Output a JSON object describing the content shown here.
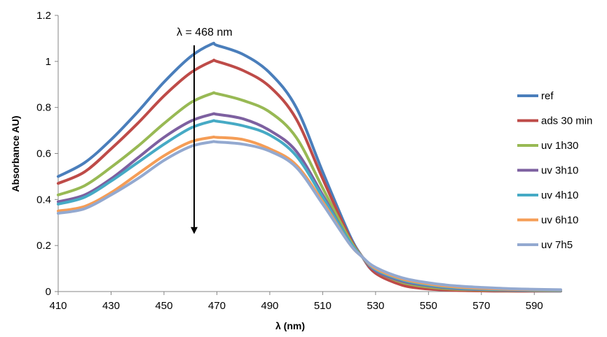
{
  "chart_data": {
    "type": "line",
    "title": "",
    "xlabel": "λ (nm)",
    "ylabel": "Absorbance  AU)",
    "xlim": [
      410,
      600
    ],
    "ylim": [
      0,
      1.2
    ],
    "x_ticks": [
      "410",
      "430",
      "450",
      "470",
      "490",
      "510",
      "530",
      "550",
      "570",
      "590"
    ],
    "y_ticks": [
      "0",
      "0.2",
      "0.4",
      "0.6",
      "0.8",
      "1",
      "1.2"
    ],
    "grid": false,
    "legend_position": "right",
    "annotation": {
      "text": "λ = 468 nm",
      "arrow_x": 468,
      "arrow_from_y": 1.07,
      "arrow_to_y": 0.25
    },
    "x": [
      410,
      420,
      430,
      440,
      450,
      460,
      468,
      470,
      480,
      490,
      500,
      510,
      520,
      525,
      530,
      540,
      550,
      560,
      570,
      580,
      590,
      600
    ],
    "series": [
      {
        "name": "ref",
        "color": "#4A7EBB",
        "values": [
          0.5,
          0.56,
          0.66,
          0.78,
          0.91,
          1.02,
          1.075,
          1.07,
          1.03,
          0.95,
          0.8,
          0.52,
          0.25,
          0.15,
          0.08,
          0.03,
          0.012,
          0.006,
          0.003,
          0.002,
          0.002,
          0.002
        ]
      },
      {
        "name": "ads 30 min",
        "color": "#BE4B48",
        "values": [
          0.47,
          0.52,
          0.62,
          0.73,
          0.85,
          0.95,
          1.0,
          1.0,
          0.96,
          0.89,
          0.75,
          0.49,
          0.24,
          0.15,
          0.08,
          0.028,
          0.011,
          0.005,
          0.003,
          0.002,
          0.002,
          0.002
        ]
      },
      {
        "name": "uv 1h30",
        "color": "#98B954",
        "values": [
          0.42,
          0.46,
          0.54,
          0.63,
          0.73,
          0.82,
          0.86,
          0.86,
          0.83,
          0.78,
          0.67,
          0.45,
          0.23,
          0.15,
          0.09,
          0.04,
          0.02,
          0.01,
          0.007,
          0.005,
          0.004,
          0.003
        ]
      },
      {
        "name": "uv 3h10",
        "color": "#7D60A0",
        "values": [
          0.39,
          0.42,
          0.49,
          0.58,
          0.67,
          0.74,
          0.77,
          0.77,
          0.75,
          0.7,
          0.61,
          0.42,
          0.22,
          0.15,
          0.09,
          0.045,
          0.025,
          0.013,
          0.009,
          0.006,
          0.005,
          0.004
        ]
      },
      {
        "name": "uv 4h10",
        "color": "#46AAC5",
        "values": [
          0.38,
          0.41,
          0.48,
          0.56,
          0.64,
          0.71,
          0.74,
          0.74,
          0.72,
          0.68,
          0.59,
          0.41,
          0.22,
          0.15,
          0.095,
          0.05,
          0.028,
          0.016,
          0.011,
          0.008,
          0.006,
          0.005
        ]
      },
      {
        "name": "uv  6h10",
        "color": "#F59D56",
        "values": [
          0.35,
          0.37,
          0.43,
          0.51,
          0.59,
          0.65,
          0.67,
          0.67,
          0.66,
          0.62,
          0.55,
          0.39,
          0.21,
          0.15,
          0.1,
          0.055,
          0.033,
          0.02,
          0.014,
          0.01,
          0.008,
          0.007
        ]
      },
      {
        "name": "uv 7h5",
        "color": "#93A9D0",
        "values": [
          0.34,
          0.36,
          0.42,
          0.49,
          0.57,
          0.63,
          0.65,
          0.65,
          0.64,
          0.61,
          0.54,
          0.38,
          0.21,
          0.15,
          0.105,
          0.06,
          0.038,
          0.025,
          0.018,
          0.013,
          0.01,
          0.008
        ]
      }
    ]
  }
}
